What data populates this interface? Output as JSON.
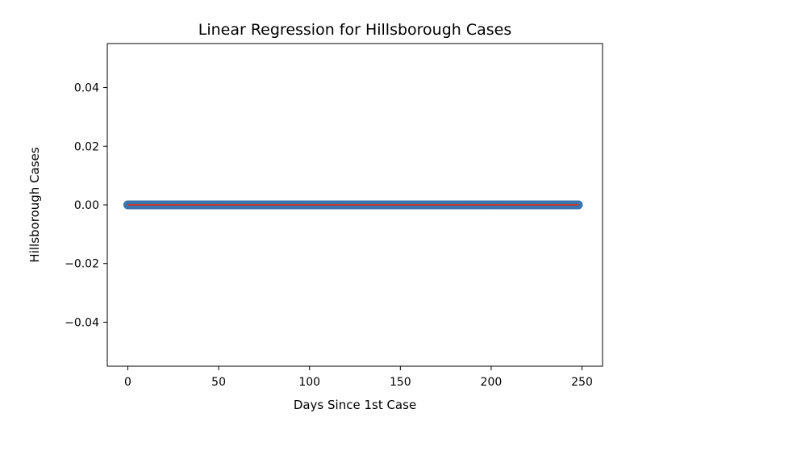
{
  "chart_data": {
    "type": "scatter",
    "title": "Linear Regression for Hillsborough Cases",
    "xlabel": "Days Since 1st Case",
    "ylabel": "Hillsborough Cases",
    "xlim": [
      -11.3,
      261.3
    ],
    "ylim": [
      -0.055,
      0.055
    ],
    "xticks": [
      0,
      50,
      100,
      150,
      200,
      250
    ],
    "yticks": [
      0.04,
      0.02,
      0.0,
      -0.02,
      -0.04
    ],
    "xtick_labels": [
      "0",
      "50",
      "100",
      "150",
      "200",
      "250"
    ],
    "ytick_labels": [
      "0.04",
      "0.02",
      "0.00",
      "−0.02",
      "−0.04"
    ],
    "grid": false,
    "points": {
      "x_start": 0,
      "x_end": 248,
      "x_step": 1,
      "y": 0.0
    },
    "regression": {
      "x": [
        0,
        248
      ],
      "y": [
        0.0,
        0.0
      ]
    },
    "colors": {
      "points": "#3b75af",
      "regression": "#c0392b"
    }
  }
}
